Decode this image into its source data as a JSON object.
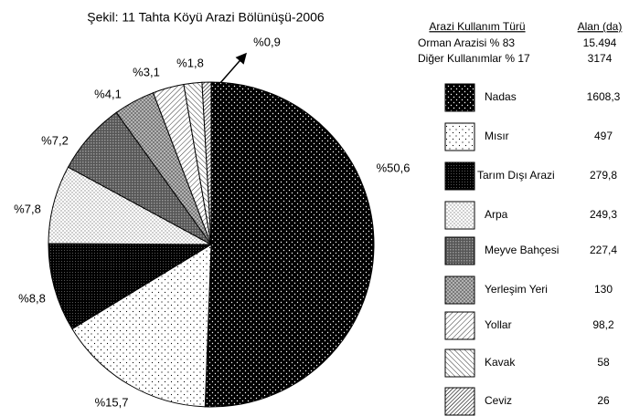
{
  "chart_data": {
    "type": "pie",
    "title": "Şekil: 11 Tahta Köyü Arazi Bölünüşü-2006",
    "categories": [
      "Nadas",
      "Mısır",
      "Tarım Dışı Arazi",
      "Arpa",
      "Meyve Bahçesi",
      "Yerleşim Yeri",
      "Yollar",
      "Kavak",
      "Ceviz"
    ],
    "values": [
      50.6,
      15.7,
      8.8,
      7.8,
      7.2,
      4.1,
      3.1,
      1.8,
      0.9
    ],
    "value_labels": [
      "%50,6",
      "%15,7",
      "%8,8",
      "%7,8",
      "%7,2",
      "%4,1",
      "%3,1",
      "%1,8",
      "%0,9"
    ],
    "legend_headers": [
      "Arazi Kullanım Türü",
      "Alan (da)"
    ],
    "summary_rows": [
      {
        "label": "Orman Arazisi  % 83",
        "area": "15.494"
      },
      {
        "label": "Diğer Kullanımlar % 17",
        "area": "3174"
      }
    ],
    "areas": [
      "1608,3",
      "497",
      "279,8",
      "249,3",
      "227,4",
      "130",
      "98,2",
      "58",
      "26"
    ]
  }
}
